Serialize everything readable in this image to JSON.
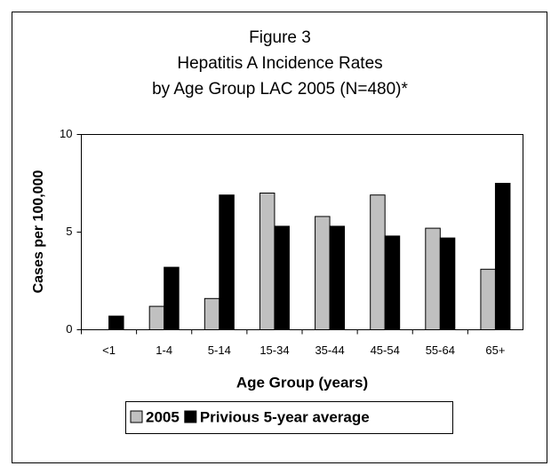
{
  "chart_data": {
    "type": "bar",
    "title": [
      "Figure 3",
      "Hepatitis A Incidence Rates",
      "by Age Group LAC 2005 (N=480)*"
    ],
    "x_label": "Age Group (years)",
    "y_label": "Cases per 100,000",
    "categories": [
      "<1",
      "1-4",
      "5-14",
      "15-34",
      "35-44",
      "45-54",
      "55-64",
      "65+"
    ],
    "series": [
      {
        "name": "2005",
        "color": "#c0c0c0",
        "values": [
          0,
          1.2,
          1.6,
          7.0,
          5.8,
          6.9,
          5.2,
          3.1
        ]
      },
      {
        "name": "Privious 5-year average",
        "color": "#000000",
        "values": [
          0.7,
          3.2,
          6.9,
          5.3,
          5.3,
          4.8,
          4.7,
          7.5
        ]
      }
    ],
    "ylim": [
      0,
      10
    ],
    "yticks": [
      0,
      5,
      10
    ],
    "grid": false,
    "legend": "bottom"
  }
}
